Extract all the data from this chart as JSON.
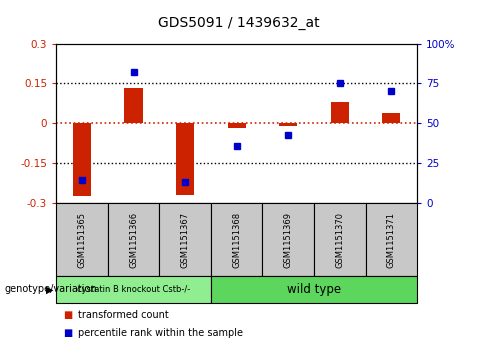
{
  "title": "GDS5091 / 1439632_at",
  "samples": [
    "GSM1151365",
    "GSM1151366",
    "GSM1151367",
    "GSM1151368",
    "GSM1151369",
    "GSM1151370",
    "GSM1151371"
  ],
  "red_values": [
    -0.272,
    0.133,
    -0.268,
    -0.018,
    -0.01,
    0.082,
    0.038
  ],
  "blue_values": [
    14.5,
    82.0,
    13.5,
    36.0,
    42.5,
    75.0,
    70.0
  ],
  "ylim_left": [
    -0.3,
    0.3
  ],
  "ylim_right": [
    0,
    100
  ],
  "yticks_left": [
    -0.3,
    -0.15,
    0,
    0.15,
    0.3
  ],
  "ytick_labels_left": [
    "-0.3",
    "-0.15",
    "0",
    "0.15",
    "0.3"
  ],
  "yticks_right": [
    0,
    25,
    50,
    75,
    100
  ],
  "ytick_labels_right": [
    "0",
    "25",
    "50",
    "75",
    "100%"
  ],
  "group1_label": "cystatin B knockout Cstb-/-",
  "group2_label": "wild type",
  "group1_count": 3,
  "group2_count": 4,
  "group1_color": "#90EE90",
  "group2_color": "#5CD65C",
  "bar_color": "#CC2200",
  "dot_color": "#0000CC",
  "zero_line_color": "#CC2200",
  "dotted_line_color": "#000000",
  "bg_color": "#ffffff",
  "label_bar": "transformed count",
  "label_dot": "percentile rank within the sample",
  "bar_width": 0.35,
  "sample_bg_color": "#C8C8C8",
  "genotype_label": "genotype/variation"
}
